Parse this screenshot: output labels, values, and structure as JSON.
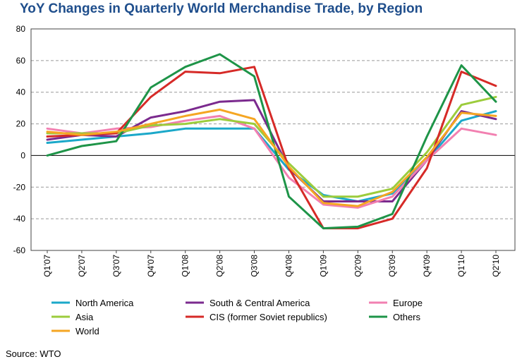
{
  "chart_data": {
    "type": "line",
    "title": "YoY Changes in Quarterly World Merchandise Trade, by Region",
    "xlabel": "",
    "ylabel": "",
    "ylim": [
      -60,
      80
    ],
    "yticks": [
      80,
      60,
      40,
      20,
      0,
      -20,
      -40,
      -60
    ],
    "grid": "horizontal-dashed",
    "categories": [
      "Q1'07",
      "Q2'07",
      "Q3'07",
      "Q4'07",
      "Q1'08",
      "Q2'08",
      "Q3'08",
      "Q4'08",
      "Q1'09",
      "Q2'09",
      "Q3'09",
      "Q4'09",
      "Q1'10",
      "Q2'10"
    ],
    "series": [
      {
        "name": "North America",
        "color": "#1ba8c9",
        "values": [
          8,
          10,
          12,
          14,
          17,
          17,
          17,
          -9,
          -25,
          -29,
          -24,
          -3,
          22,
          28
        ]
      },
      {
        "name": "South & Central America",
        "color": "#7b2a8e",
        "values": [
          10,
          13,
          12,
          24,
          28,
          34,
          35,
          -8,
          -29,
          -29,
          -29,
          -3,
          28,
          23
        ]
      },
      {
        "name": "Europe",
        "color": "#f280b1",
        "values": [
          17,
          14,
          17,
          18,
          22,
          25,
          17,
          -14,
          -31,
          -33,
          -26,
          -3,
          17,
          13
        ]
      },
      {
        "name": "Asia",
        "color": "#9ccc3c",
        "values": [
          14,
          14,
          14,
          19,
          20,
          23,
          20,
          -5,
          -26,
          -26,
          -21,
          2,
          32,
          37
        ]
      },
      {
        "name": "CIS (former Soviet republics)",
        "color": "#d62a27",
        "values": [
          12,
          13,
          14,
          37,
          53,
          52,
          56,
          -8,
          -46,
          -46,
          -40,
          -8,
          53,
          44
        ]
      },
      {
        "name": "Others",
        "color": "#1e9448",
        "values": [
          0,
          6,
          9,
          43,
          56,
          64,
          50,
          -26,
          -46,
          -45,
          -37,
          12,
          57,
          34
        ]
      },
      {
        "name": "World",
        "color": "#f5a623",
        "values": [
          15,
          13,
          15,
          20,
          25,
          29,
          23,
          -7,
          -30,
          -32,
          -23,
          -1,
          27,
          25
        ]
      }
    ]
  },
  "source": "Source: WTO"
}
